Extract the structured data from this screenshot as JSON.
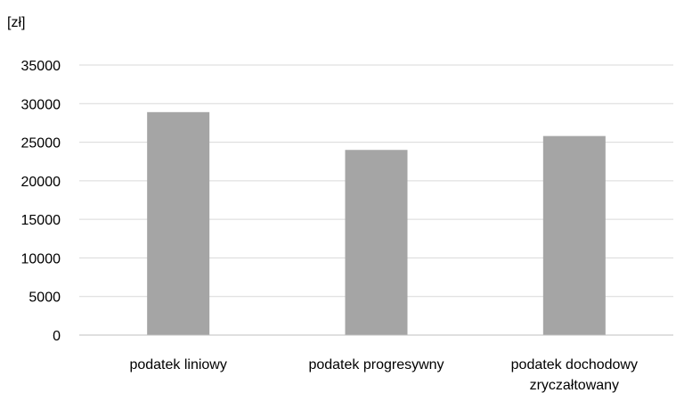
{
  "chart_data": {
    "type": "bar",
    "title": "",
    "xlabel": "",
    "ylabel": "[zł]",
    "categories": [
      [
        "podatek liniowy"
      ],
      [
        "podatek progresywny"
      ],
      [
        "podatek dochodowy",
        "zryczałtowany"
      ]
    ],
    "values": [
      28900,
      24000,
      25800
    ],
    "ylim": [
      0,
      35000
    ],
    "yticks": [
      "0",
      "5000",
      "10000",
      "15000",
      "20000",
      "25000",
      "30000",
      "35000"
    ],
    "grid": true,
    "legend": "none",
    "colors": {
      "bar": "#a5a5a5",
      "grid": "#d9d9d9",
      "axis": "#bfbfbf",
      "text": "#000000"
    }
  }
}
